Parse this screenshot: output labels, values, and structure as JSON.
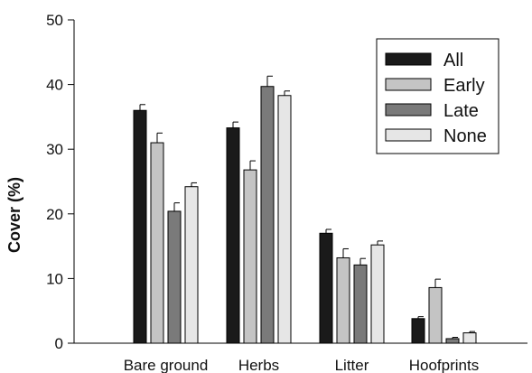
{
  "chart_data": {
    "type": "bar",
    "title": "",
    "xlabel": "",
    "ylabel": "Cover (%)",
    "ylim": [
      0,
      50
    ],
    "yticks": [
      0,
      10,
      20,
      30,
      40,
      50
    ],
    "grid": false,
    "legend_position": "top-right",
    "categories": [
      "Bare ground",
      "Herbs",
      "Litter",
      "Hoofprints"
    ],
    "series": [
      {
        "name": "All",
        "color": "#1a1a1a",
        "values": [
          36.0,
          33.3,
          17.0,
          3.8
        ],
        "errors": [
          0.9,
          0.9,
          0.6,
          0.3
        ]
      },
      {
        "name": "Early",
        "color": "#c4c4c4",
        "values": [
          31.0,
          26.8,
          13.2,
          8.6
        ],
        "errors": [
          1.5,
          1.4,
          1.4,
          1.3
        ]
      },
      {
        "name": "Late",
        "color": "#7a7a7a",
        "values": [
          20.4,
          39.7,
          12.1,
          0.7
        ],
        "errors": [
          1.3,
          1.6,
          1.0,
          0.2
        ]
      },
      {
        "name": "None",
        "color": "#e6e6e6",
        "values": [
          24.2,
          38.3,
          15.2,
          1.6
        ],
        "errors": [
          0.6,
          0.7,
          0.6,
          0.2
        ]
      }
    ]
  }
}
